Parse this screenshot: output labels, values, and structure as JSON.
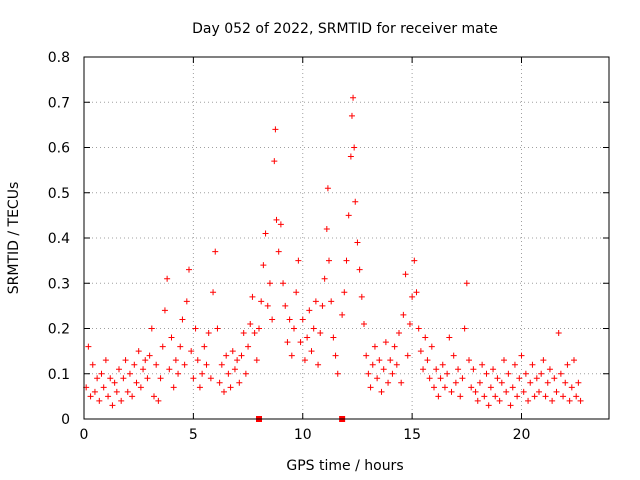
{
  "chart_data": {
    "type": "scatter",
    "title": "Day 052 of 2022, SRMTID for receiver mate",
    "xlabel": "GPS time / hours",
    "ylabel": "SRMTID / TECUs",
    "xlim": [
      0,
      24
    ],
    "ylim": [
      0,
      0.8
    ],
    "xticks": [
      0,
      5,
      10,
      15,
      20
    ],
    "xtick_labels": [
      "0",
      "5",
      "10",
      "15",
      "20"
    ],
    "yticks": [
      0,
      0.1,
      0.2,
      0.3,
      0.4,
      0.5,
      0.6,
      0.7,
      0.8
    ],
    "ytick_labels": [
      "0",
      "0.1",
      "0.2",
      "0.3",
      "0.4",
      "0.5",
      "0.6",
      "0.7",
      "0.8"
    ],
    "grid": true,
    "marker": "+",
    "color": "#ff0000",
    "gap_markers_x": [
      8.0,
      11.8
    ],
    "series": [
      {
        "name": "SRMTID",
        "points": [
          [
            0.1,
            0.07
          ],
          [
            0.2,
            0.16
          ],
          [
            0.3,
            0.05
          ],
          [
            0.4,
            0.12
          ],
          [
            0.5,
            0.06
          ],
          [
            0.6,
            0.09
          ],
          [
            0.7,
            0.04
          ],
          [
            0.8,
            0.1
          ],
          [
            0.9,
            0.07
          ],
          [
            1.0,
            0.13
          ],
          [
            1.1,
            0.05
          ],
          [
            1.2,
            0.09
          ],
          [
            1.3,
            0.03
          ],
          [
            1.4,
            0.08
          ],
          [
            1.5,
            0.06
          ],
          [
            1.6,
            0.11
          ],
          [
            1.7,
            0.04
          ],
          [
            1.8,
            0.09
          ],
          [
            1.9,
            0.13
          ],
          [
            2.0,
            0.06
          ],
          [
            2.1,
            0.1
          ],
          [
            2.2,
            0.05
          ],
          [
            2.3,
            0.12
          ],
          [
            2.4,
            0.08
          ],
          [
            2.5,
            0.15
          ],
          [
            2.6,
            0.07
          ],
          [
            2.7,
            0.11
          ],
          [
            2.8,
            0.13
          ],
          [
            2.9,
            0.09
          ],
          [
            3.0,
            0.14
          ],
          [
            3.1,
            0.2
          ],
          [
            3.2,
            0.05
          ],
          [
            3.3,
            0.12
          ],
          [
            3.4,
            0.04
          ],
          [
            3.5,
            0.09
          ],
          [
            3.6,
            0.16
          ],
          [
            3.7,
            0.24
          ],
          [
            3.8,
            0.31
          ],
          [
            3.9,
            0.11
          ],
          [
            4.0,
            0.18
          ],
          [
            4.1,
            0.07
          ],
          [
            4.2,
            0.13
          ],
          [
            4.3,
            0.1
          ],
          [
            4.4,
            0.16
          ],
          [
            4.5,
            0.22
          ],
          [
            4.6,
            0.12
          ],
          [
            4.7,
            0.26
          ],
          [
            4.8,
            0.33
          ],
          [
            4.9,
            0.15
          ],
          [
            5.0,
            0.09
          ],
          [
            5.1,
            0.2
          ],
          [
            5.2,
            0.13
          ],
          [
            5.3,
            0.07
          ],
          [
            5.4,
            0.1
          ],
          [
            5.5,
            0.16
          ],
          [
            5.6,
            0.12
          ],
          [
            5.7,
            0.19
          ],
          [
            5.8,
            0.09
          ],
          [
            5.9,
            0.28
          ],
          [
            6.0,
            0.37
          ],
          [
            6.1,
            0.2
          ],
          [
            6.2,
            0.08
          ],
          [
            6.3,
            0.12
          ],
          [
            6.4,
            0.06
          ],
          [
            6.5,
            0.14
          ],
          [
            6.6,
            0.1
          ],
          [
            6.7,
            0.07
          ],
          [
            6.8,
            0.15
          ],
          [
            6.9,
            0.11
          ],
          [
            7.0,
            0.13
          ],
          [
            7.1,
            0.08
          ],
          [
            7.2,
            0.14
          ],
          [
            7.3,
            0.19
          ],
          [
            7.4,
            0.1
          ],
          [
            7.5,
            0.16
          ],
          [
            7.6,
            0.21
          ],
          [
            7.7,
            0.27
          ],
          [
            7.8,
            0.19
          ],
          [
            7.9,
            0.13
          ],
          [
            8.0,
            0.2
          ],
          [
            8.1,
            0.26
          ],
          [
            8.2,
            0.34
          ],
          [
            8.3,
            0.41
          ],
          [
            8.4,
            0.25
          ],
          [
            8.5,
            0.3
          ],
          [
            8.6,
            0.22
          ],
          [
            8.7,
            0.57
          ],
          [
            8.75,
            0.64
          ],
          [
            8.8,
            0.44
          ],
          [
            8.9,
            0.37
          ],
          [
            9.0,
            0.43
          ],
          [
            9.1,
            0.3
          ],
          [
            9.2,
            0.25
          ],
          [
            9.3,
            0.17
          ],
          [
            9.4,
            0.22
          ],
          [
            9.5,
            0.14
          ],
          [
            9.6,
            0.2
          ],
          [
            9.7,
            0.28
          ],
          [
            9.8,
            0.35
          ],
          [
            9.9,
            0.17
          ],
          [
            10.0,
            0.22
          ],
          [
            10.1,
            0.13
          ],
          [
            10.2,
            0.18
          ],
          [
            10.3,
            0.24
          ],
          [
            10.4,
            0.15
          ],
          [
            10.5,
            0.2
          ],
          [
            10.6,
            0.26
          ],
          [
            10.7,
            0.12
          ],
          [
            10.8,
            0.19
          ],
          [
            10.9,
            0.25
          ],
          [
            11.0,
            0.31
          ],
          [
            11.1,
            0.42
          ],
          [
            11.15,
            0.51
          ],
          [
            11.2,
            0.35
          ],
          [
            11.3,
            0.26
          ],
          [
            11.4,
            0.18
          ],
          [
            11.5,
            0.14
          ],
          [
            11.6,
            0.1
          ],
          [
            11.8,
            0.23
          ],
          [
            11.9,
            0.28
          ],
          [
            12.0,
            0.35
          ],
          [
            12.1,
            0.45
          ],
          [
            12.2,
            0.58
          ],
          [
            12.25,
            0.67
          ],
          [
            12.3,
            0.71
          ],
          [
            12.35,
            0.6
          ],
          [
            12.4,
            0.48
          ],
          [
            12.5,
            0.39
          ],
          [
            12.6,
            0.33
          ],
          [
            12.7,
            0.27
          ],
          [
            12.8,
            0.21
          ],
          [
            12.9,
            0.14
          ],
          [
            13.0,
            0.1
          ],
          [
            13.1,
            0.07
          ],
          [
            13.2,
            0.12
          ],
          [
            13.3,
            0.16
          ],
          [
            13.4,
            0.09
          ],
          [
            13.5,
            0.13
          ],
          [
            13.6,
            0.06
          ],
          [
            13.7,
            0.11
          ],
          [
            13.8,
            0.17
          ],
          [
            13.9,
            0.08
          ],
          [
            14.0,
            0.13
          ],
          [
            14.1,
            0.1
          ],
          [
            14.2,
            0.16
          ],
          [
            14.3,
            0.12
          ],
          [
            14.4,
            0.19
          ],
          [
            14.5,
            0.08
          ],
          [
            14.6,
            0.23
          ],
          [
            14.7,
            0.32
          ],
          [
            14.8,
            0.14
          ],
          [
            14.9,
            0.21
          ],
          [
            15.0,
            0.27
          ],
          [
            15.1,
            0.35
          ],
          [
            15.2,
            0.28
          ],
          [
            15.3,
            0.2
          ],
          [
            15.4,
            0.15
          ],
          [
            15.5,
            0.11
          ],
          [
            15.6,
            0.18
          ],
          [
            15.7,
            0.13
          ],
          [
            15.8,
            0.09
          ],
          [
            15.9,
            0.16
          ],
          [
            16.0,
            0.07
          ],
          [
            16.1,
            0.11
          ],
          [
            16.2,
            0.05
          ],
          [
            16.3,
            0.09
          ],
          [
            16.4,
            0.12
          ],
          [
            16.5,
            0.07
          ],
          [
            16.6,
            0.1
          ],
          [
            16.7,
            0.18
          ],
          [
            16.8,
            0.06
          ],
          [
            16.9,
            0.14
          ],
          [
            17.0,
            0.08
          ],
          [
            17.1,
            0.11
          ],
          [
            17.2,
            0.05
          ],
          [
            17.3,
            0.09
          ],
          [
            17.4,
            0.2
          ],
          [
            17.5,
            0.3
          ],
          [
            17.6,
            0.13
          ],
          [
            17.7,
            0.07
          ],
          [
            17.8,
            0.11
          ],
          [
            17.9,
            0.06
          ],
          [
            18.0,
            0.04
          ],
          [
            18.1,
            0.08
          ],
          [
            18.2,
            0.12
          ],
          [
            18.3,
            0.05
          ],
          [
            18.4,
            0.1
          ],
          [
            18.5,
            0.03
          ],
          [
            18.6,
            0.07
          ],
          [
            18.7,
            0.11
          ],
          [
            18.8,
            0.05
          ],
          [
            18.9,
            0.09
          ],
          [
            19.0,
            0.04
          ],
          [
            19.1,
            0.08
          ],
          [
            19.2,
            0.13
          ],
          [
            19.3,
            0.06
          ],
          [
            19.4,
            0.1
          ],
          [
            19.5,
            0.03
          ],
          [
            19.6,
            0.07
          ],
          [
            19.7,
            0.12
          ],
          [
            19.8,
            0.05
          ],
          [
            19.9,
            0.09
          ],
          [
            20.0,
            0.14
          ],
          [
            20.1,
            0.06
          ],
          [
            20.2,
            0.1
          ],
          [
            20.3,
            0.04
          ],
          [
            20.4,
            0.08
          ],
          [
            20.5,
            0.12
          ],
          [
            20.6,
            0.05
          ],
          [
            20.7,
            0.09
          ],
          [
            20.8,
            0.06
          ],
          [
            20.9,
            0.1
          ],
          [
            21.0,
            0.13
          ],
          [
            21.1,
            0.05
          ],
          [
            21.2,
            0.08
          ],
          [
            21.3,
            0.11
          ],
          [
            21.4,
            0.04
          ],
          [
            21.5,
            0.09
          ],
          [
            21.6,
            0.06
          ],
          [
            21.7,
            0.19
          ],
          [
            21.8,
            0.1
          ],
          [
            21.9,
            0.05
          ],
          [
            22.0,
            0.08
          ],
          [
            22.1,
            0.12
          ],
          [
            22.2,
            0.04
          ],
          [
            22.3,
            0.07
          ],
          [
            22.4,
            0.13
          ],
          [
            22.5,
            0.05
          ],
          [
            22.6,
            0.08
          ],
          [
            22.7,
            0.04
          ]
        ]
      }
    ]
  }
}
